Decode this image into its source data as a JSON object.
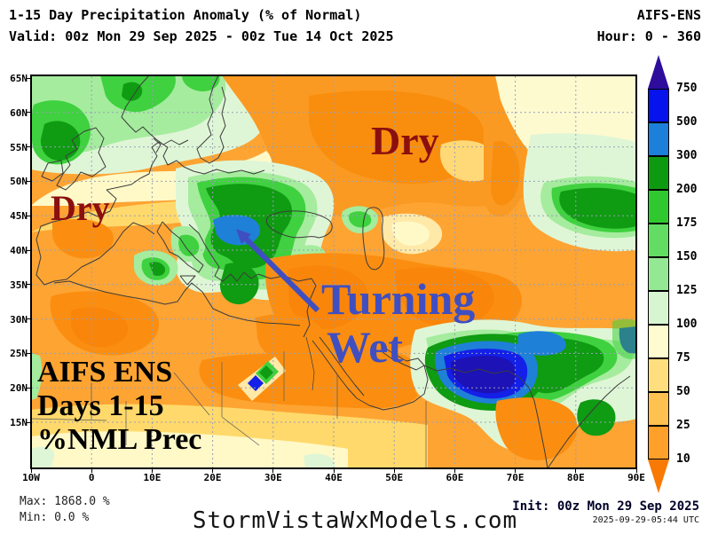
{
  "header": {
    "title": "1-15 Day Precipitation Anomaly (% of Normal)",
    "model": "AIFS-ENS",
    "valid": "Valid: 00z Mon 29 Sep 2025 - 00z Tue 14 Oct 2025",
    "hour": "Hour: 0 - 360"
  },
  "map": {
    "lat_labels": [
      "65N",
      "60N",
      "55N",
      "50N",
      "45N",
      "40N",
      "35N",
      "30N",
      "25N",
      "20N",
      "15N"
    ],
    "lon_labels": [
      "10W",
      "0",
      "10E",
      "20E",
      "30E",
      "40E",
      "50E",
      "60E",
      "70E",
      "80E",
      "90E"
    ],
    "annotations": {
      "dry_russia": "Dry",
      "dry_iberia": "Dry",
      "turning_line1": "Turning",
      "turning_line2": "Wet",
      "model_line1": "AIFS ENS",
      "model_line2": "Days 1-15",
      "model_line3": "%NML Prec"
    },
    "annotation_colors": {
      "dry": "#8b0f0f",
      "turning_wet": "#3f4fc1",
      "model_text": "#000000"
    }
  },
  "colorbar": {
    "labels": [
      "750",
      "500",
      "300",
      "200",
      "175",
      "150",
      "125",
      "100",
      "75",
      "50",
      "25",
      "10"
    ],
    "segment_colors": [
      "#0713ec",
      "#1c7fd9",
      "#0e9a10",
      "#2fc92f",
      "#63dc63",
      "#94e894",
      "#d8f5d2",
      "#fefbd1",
      "#ffdf7d",
      "#ffc14f",
      "#ffa02b"
    ],
    "arrow_top_color": "#2e0d9c",
    "arrow_bottom_color": "#f87a05"
  },
  "palette": {
    "base_orange": "#fda433",
    "dark_orange": "#fb8e10",
    "deep_orange": "#f97f05",
    "gold": "#ffd96b",
    "cream": "#fff9c8",
    "pale_green": "#dff6d6",
    "light_green": "#a5ec9e",
    "med_green": "#3fd13f",
    "dark_green": "#0f9b12",
    "steel_blue": "#1f80d8",
    "blue": "#1420e8",
    "navy": "#1c12b6"
  },
  "footer": {
    "max": "Max: 1868.0 %",
    "min": "Min: 0.0 %",
    "watermark": "StormVistaWxModels.com",
    "init": "Init: 00z Mon 29 Sep 2025",
    "generated": "2025-09-29-05:44 UTC"
  }
}
